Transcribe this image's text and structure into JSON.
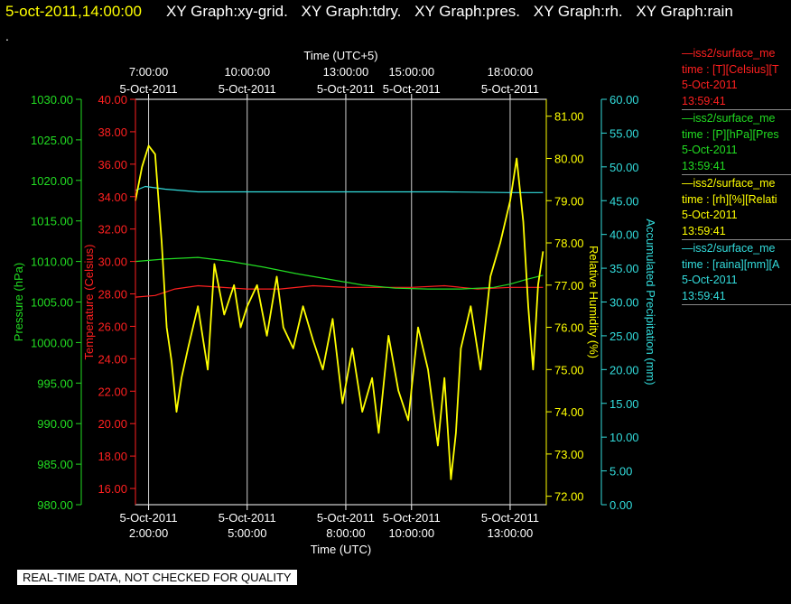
{
  "header": {
    "timestamp": "5-oct-2011,14:00:00",
    "tabs": [
      "XY Graph:xy-grid.",
      "XY Graph:tdry.",
      "XY Graph:pres.",
      "XY Graph:rh.",
      "XY Graph:rain"
    ],
    "dot": "."
  },
  "notice": "REAL-TIME DATA, NOT CHECKED FOR QUALITY",
  "legend": [
    {
      "line1": "—iss2/surface_me",
      "line2": "time : [T][Celsius][T",
      "line3": "5-Oct-2011",
      "line4": "13:59:41",
      "color": "#ff2020"
    },
    {
      "line1": "—iss2/surface_me",
      "line2": "time : [P][hPa][Pres",
      "line3": "5-Oct-2011",
      "line4": "13:59:41",
      "color": "#22dd22"
    },
    {
      "line1": "—iss2/surface_me",
      "line2": "time : [rh][%][Relati",
      "line3": "5-Oct-2011",
      "line4": "13:59:41",
      "color": "#ffff00"
    },
    {
      "line1": "—iss2/surface_me",
      "line2": "time : [raina][mm][A",
      "line3": "5-Oct-2011",
      "line4": "13:59:41",
      "color": "#33dddd"
    }
  ],
  "chart_data": {
    "type": "line",
    "top_axis_title": "Time (UTC+5)",
    "bottom_axis_title": "Time (UTC)",
    "x_range_hours_utc": [
      1.6,
      14.1
    ],
    "top_ticks": [
      {
        "t": 2,
        "time": "7:00:00",
        "date": "5-Oct-2011"
      },
      {
        "t": 5,
        "time": "10:00:00",
        "date": "5-Oct-2011"
      },
      {
        "t": 8,
        "time": "13:00:00",
        "date": "5-Oct-2011"
      },
      {
        "t": 10,
        "time": "15:00:00",
        "date": "5-Oct-2011"
      },
      {
        "t": 13,
        "time": "18:00:00",
        "date": "5-Oct-2011"
      }
    ],
    "bottom_ticks": [
      {
        "t": 2,
        "date": "5-Oct-2011",
        "time": "2:00:00"
      },
      {
        "t": 5,
        "date": "5-Oct-2011",
        "time": "5:00:00"
      },
      {
        "t": 8,
        "date": "5-Oct-2011",
        "time": "8:00:00"
      },
      {
        "t": 10,
        "date": "5-Oct-2011",
        "time": "10:00:00"
      },
      {
        "t": 13,
        "date": "5-Oct-2011",
        "time": "13:00:00"
      }
    ],
    "grid": true,
    "axes": [
      {
        "key": "pres",
        "label": "Pressure (hPa)",
        "color": "#22dd22",
        "range": [
          980,
          1030
        ],
        "ticks": [
          "980.00",
          "985.00",
          "990.00",
          "995.00",
          "1000.00",
          "1005.00",
          "1010.00",
          "1015.00",
          "1020.00",
          "1025.00",
          "1030.00"
        ]
      },
      {
        "key": "temp",
        "label": "Temperature (Celsius)",
        "color": "#ff2020",
        "range": [
          15,
          40
        ],
        "ticks": [
          "16.00",
          "18.00",
          "20.00",
          "22.00",
          "24.00",
          "26.00",
          "28.00",
          "30.00",
          "32.00",
          "34.00",
          "36.00",
          "38.00",
          "40.00"
        ]
      },
      {
        "key": "rh",
        "label": "Relative Humidity (%)",
        "color": "#ffff00",
        "range": [
          71.8,
          81.4
        ],
        "ticks": [
          "72.00",
          "73.00",
          "74.00",
          "75.00",
          "76.00",
          "77.00",
          "78.00",
          "79.00",
          "80.00",
          "81.00"
        ]
      },
      {
        "key": "rain",
        "label": "Accumulated Precipitation (mm)",
        "color": "#33dddd",
        "range": [
          0,
          60
        ],
        "ticks": [
          "0.00",
          "5.00",
          "10.00",
          "15.00",
          "20.00",
          "25.00",
          "30.00",
          "35.00",
          "40.00",
          "45.00",
          "50.00",
          "55.00",
          "60.00"
        ]
      }
    ],
    "series": [
      {
        "key": "temp",
        "color": "#ff2020",
        "x": [
          1.6,
          2.2,
          2.8,
          3.5,
          5,
          6,
          7,
          8,
          9,
          10,
          11,
          12,
          13,
          14
        ],
        "y": [
          27.8,
          27.9,
          28.3,
          28.5,
          28.3,
          28.3,
          28.5,
          28.4,
          28.4,
          28.4,
          28.5,
          28.3,
          28.4,
          28.4
        ]
      },
      {
        "key": "pres",
        "color": "#22dd22",
        "x": [
          1.6,
          2.5,
          3.5,
          4.5,
          5.5,
          6.5,
          7.5,
          8.5,
          9.5,
          10.5,
          11.5,
          12.5,
          13,
          13.5,
          14
        ],
        "y": [
          1010.0,
          1010.3,
          1010.5,
          1010.0,
          1009.3,
          1008.5,
          1007.8,
          1007.1,
          1006.7,
          1006.6,
          1006.6,
          1006.8,
          1007.2,
          1007.8,
          1008.3
        ]
      },
      {
        "key": "rain",
        "color": "#33dddd",
        "x": [
          1.6,
          1.9,
          2.5,
          3.5,
          5,
          8,
          11,
          13,
          14
        ],
        "y": [
          46.5,
          47.1,
          46.7,
          46.3,
          46.3,
          46.3,
          46.3,
          46.2,
          46.2
        ]
      },
      {
        "key": "rh",
        "color": "#ffff00",
        "x": [
          1.6,
          1.8,
          2.0,
          2.2,
          2.4,
          2.55,
          2.7,
          2.85,
          3.0,
          3.2,
          3.5,
          3.8,
          4.0,
          4.3,
          4.6,
          4.8,
          5.0,
          5.3,
          5.6,
          5.9,
          6.1,
          6.4,
          6.7,
          7.0,
          7.3,
          7.6,
          7.9,
          8.2,
          8.5,
          8.8,
          9.0,
          9.3,
          9.6,
          9.9,
          10.2,
          10.5,
          10.8,
          11.0,
          11.2,
          11.35,
          11.5,
          11.8,
          12.1,
          12.4,
          12.7,
          13.0,
          13.2,
          13.4,
          13.55,
          13.7,
          13.85,
          14.0
        ],
        "y": [
          79.0,
          79.8,
          80.3,
          80.1,
          78.0,
          76.0,
          75.2,
          74.0,
          74.8,
          75.5,
          76.5,
          75.0,
          77.5,
          76.3,
          77.0,
          76.0,
          76.5,
          77.0,
          75.8,
          77.2,
          76.0,
          75.5,
          76.5,
          75.7,
          75.0,
          76.2,
          74.2,
          75.5,
          74.0,
          74.8,
          73.5,
          75.8,
          74.5,
          73.8,
          76.0,
          75.0,
          73.2,
          74.8,
          72.4,
          73.5,
          75.5,
          76.5,
          75.0,
          77.2,
          78.0,
          79.0,
          80.0,
          78.5,
          76.5,
          75.0,
          77.0,
          77.8
        ]
      }
    ]
  }
}
